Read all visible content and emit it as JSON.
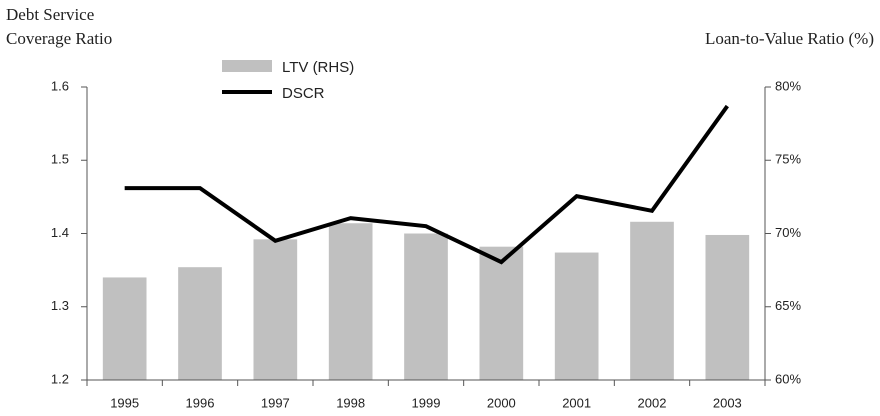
{
  "chart_data": {
    "type": "combo",
    "y_label": [
      "Debt Service",
      "Coverage Ratio"
    ],
    "y2_label": "Loan-to-Value Ratio (%)",
    "categories": [
      "1995",
      "1996",
      "1997",
      "1998",
      "1999",
      "2000",
      "2001",
      "2002",
      "2003"
    ],
    "series": [
      {
        "name": "LTV (RHS)",
        "type": "bar",
        "axis": "y2",
        "color": "#c0c0c0",
        "values": [
          67.0,
          67.7,
          69.6,
          70.7,
          70.0,
          69.1,
          68.7,
          70.8,
          69.9
        ]
      },
      {
        "name": "DSCR",
        "type": "line",
        "color": "#000000",
        "values": [
          1.462,
          1.462,
          1.39,
          1.421,
          1.41,
          1.361,
          1.451,
          1.431,
          1.574
        ]
      }
    ],
    "ylim": [
      1.2,
      1.6
    ],
    "yticks": [
      1.2,
      1.3,
      1.4,
      1.5,
      1.6
    ],
    "y2lim": [
      60,
      80
    ],
    "y2ticks": [
      {
        "value": 60,
        "label": "60%"
      },
      {
        "value": 65,
        "label": "65%"
      },
      {
        "value": 70,
        "label": "70%"
      },
      {
        "value": 75,
        "label": "75%"
      },
      {
        "value": 80,
        "label": "80%"
      }
    ],
    "grid": false
  }
}
